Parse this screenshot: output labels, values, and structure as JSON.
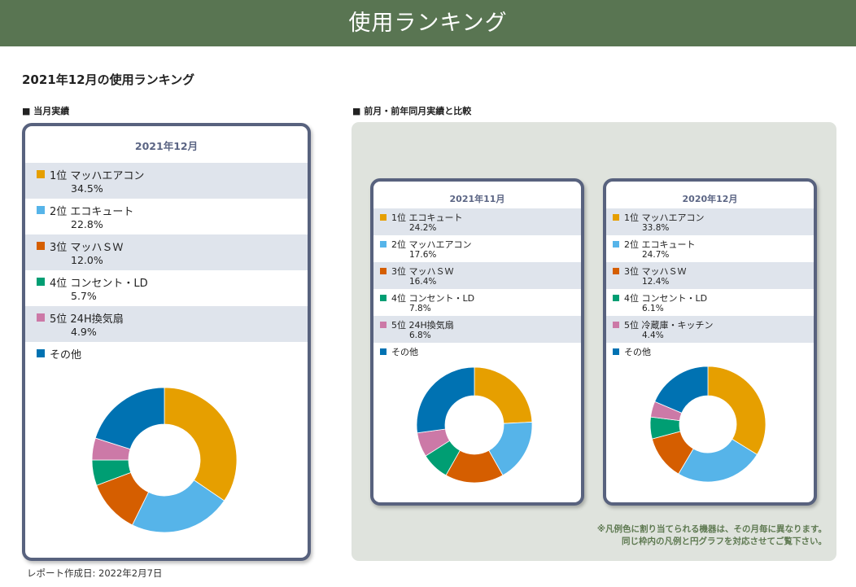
{
  "header": {
    "title": "使用ランキング"
  },
  "page_title": "2021年12月の使用ランキング",
  "current_section_label": "■ 当月実績",
  "compare_section_label": "■ 前月・前年同月実績と比較",
  "colors": {
    "header_bg": "#597552",
    "card_border": "#58627e",
    "row_shade": "#dfe4ec",
    "panel_bg": "#dfe3dd",
    "series": [
      "#e69f00",
      "#56b4e9",
      "#d55e00",
      "#009e73",
      "#cc79a7",
      "#0072b2"
    ]
  },
  "note_lines": [
    "※凡例色に割り当てられる機器は、その月毎に異なります。",
    "同じ枠内の凡例と円グラフを対応させてご覧下さい。"
  ],
  "footer": "レポート作成日: 2022年2月7日",
  "chart_data": [
    {
      "type": "pie",
      "title": "2021年12月",
      "categories": [
        "1位 マッハエアコン",
        "2位 エコキュート",
        "3位 マッハＳＷ",
        "4位 コンセント・LD",
        "5位 24H換気扇",
        "その他"
      ],
      "percent_labels": [
        "34.5%",
        "22.8%",
        "12.0%",
        "5.7%",
        "4.9%",
        ""
      ],
      "values": [
        34.5,
        22.8,
        12.0,
        5.7,
        4.9,
        20.1
      ]
    },
    {
      "type": "pie",
      "title": "2021年11月",
      "categories": [
        "1位 エコキュート",
        "2位 マッハエアコン",
        "3位 マッハＳＷ",
        "4位 コンセント・LD",
        "5位 24H換気扇",
        "その他"
      ],
      "percent_labels": [
        "24.2%",
        "17.6%",
        "16.4%",
        "7.8%",
        "6.8%",
        ""
      ],
      "values": [
        24.2,
        17.6,
        16.4,
        7.8,
        6.8,
        27.2
      ]
    },
    {
      "type": "pie",
      "title": "2020年12月",
      "categories": [
        "1位 マッハエアコン",
        "2位 エコキュート",
        "3位 マッハＳＷ",
        "4位 コンセント・LD",
        "5位 冷蔵庫・キッチン",
        "その他"
      ],
      "percent_labels": [
        "33.8%",
        "24.7%",
        "12.4%",
        "6.1%",
        "4.4%",
        ""
      ],
      "values": [
        33.8,
        24.7,
        12.4,
        6.1,
        4.4,
        18.6
      ]
    }
  ]
}
